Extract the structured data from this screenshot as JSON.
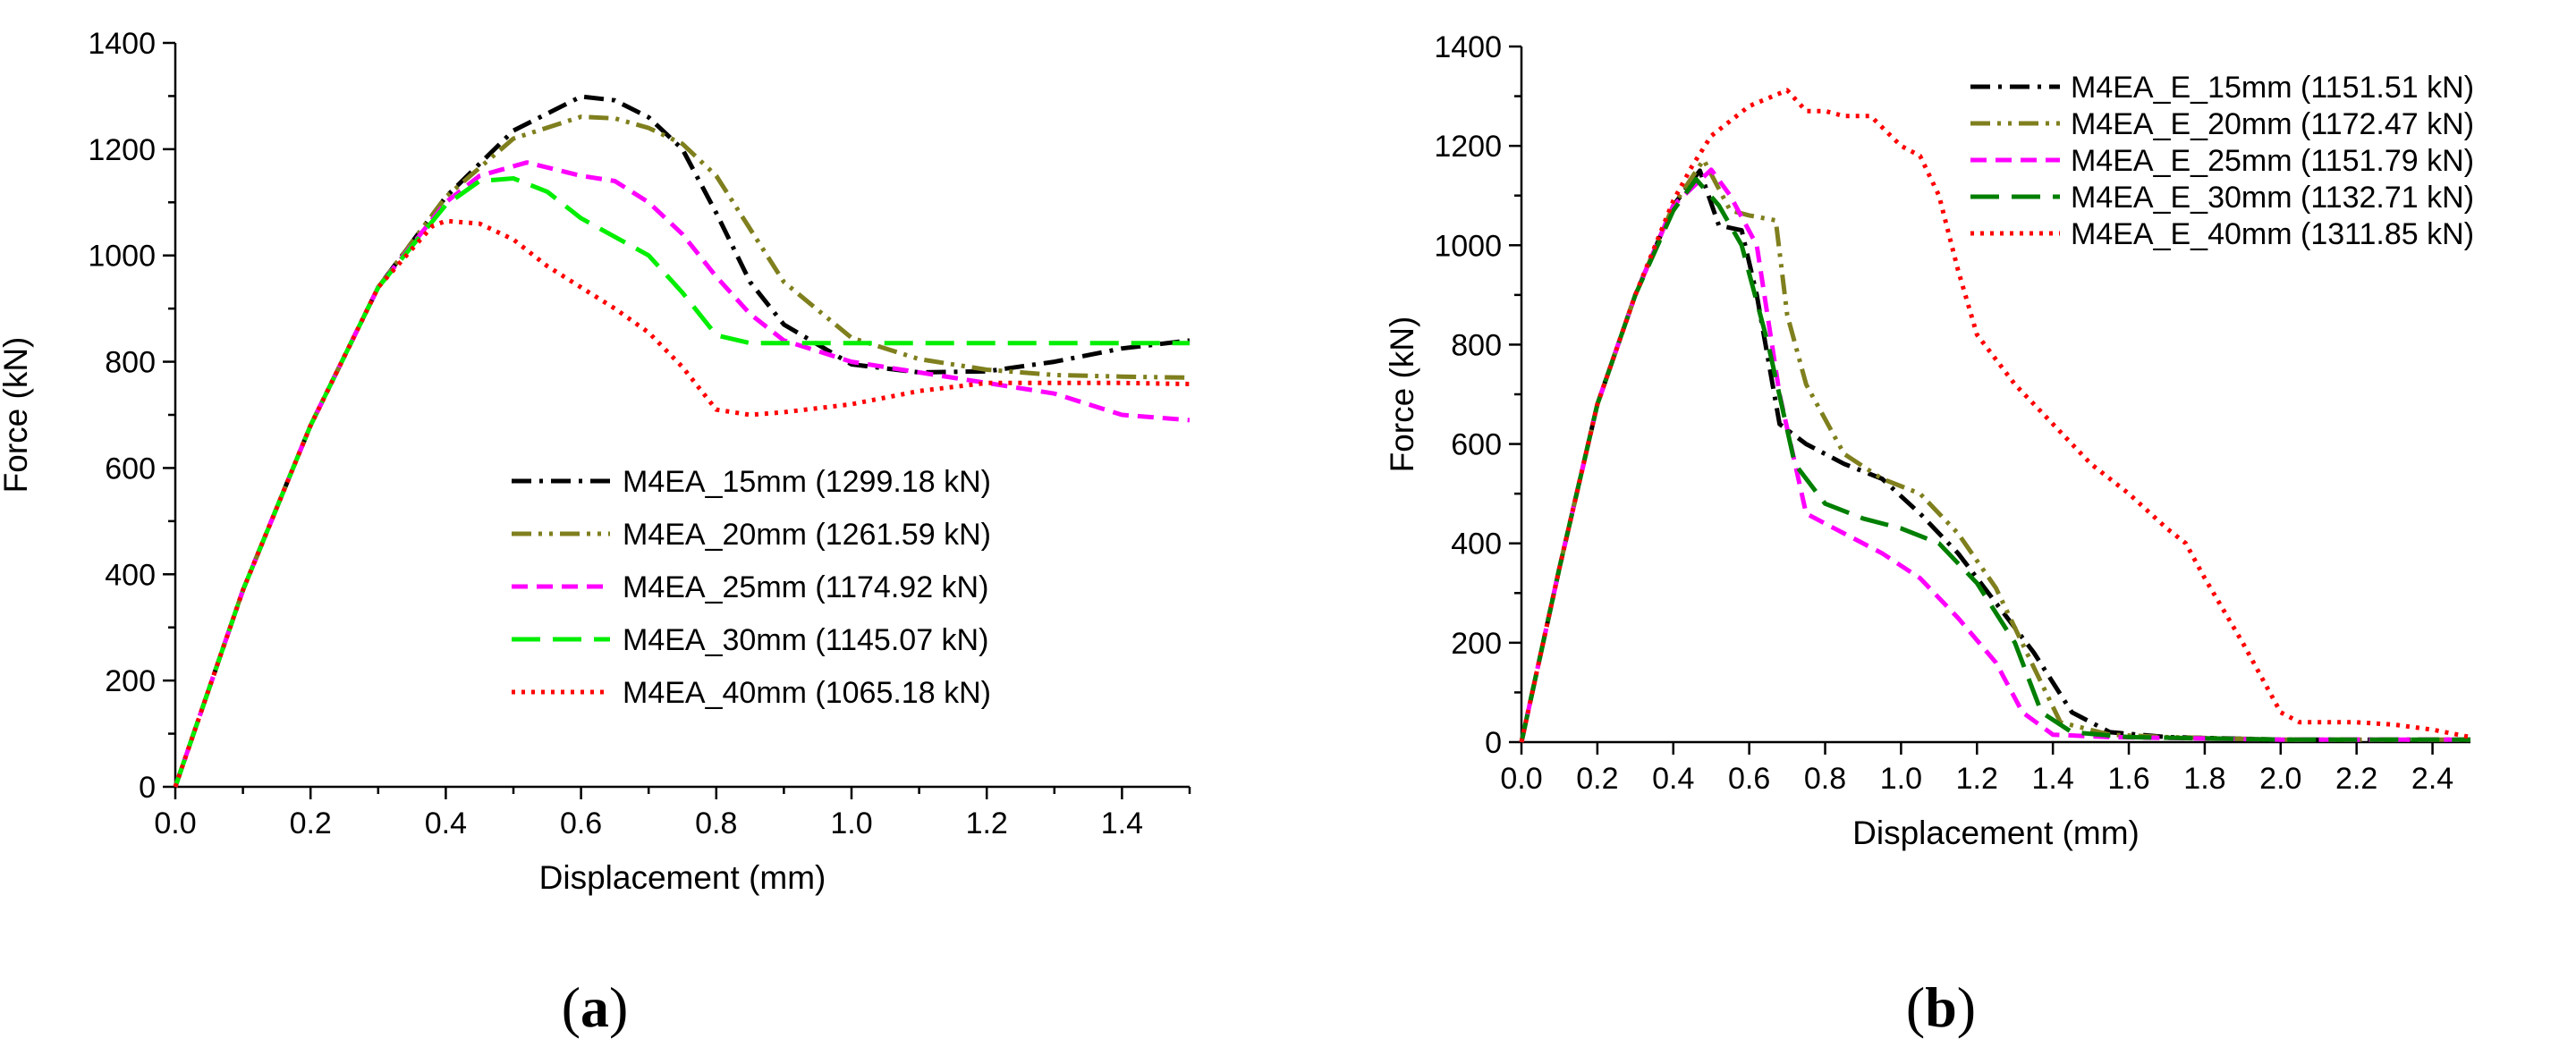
{
  "chart_data": [
    {
      "type": "line",
      "panel_label": {
        "open": "(",
        "letter": "a",
        "close": ")"
      },
      "xlabel": "Displacement (mm)",
      "ylabel": "Force (kN)",
      "xlim": [
        0,
        1.5
      ],
      "ylim": [
        0,
        1400
      ],
      "xticks": [
        0.0,
        0.2,
        0.4,
        0.6,
        0.8,
        1.0,
        1.2,
        1.4
      ],
      "xtick_labels": [
        "0.0",
        "0.2",
        "0.4",
        "0.6",
        "0.8",
        "1.0",
        "1.2",
        "1.4"
      ],
      "yticks": [
        0,
        200,
        400,
        600,
        800,
        1000,
        1200,
        1400
      ],
      "ytick_labels": [
        "0",
        "200",
        "400",
        "600",
        "800",
        "1000",
        "1200",
        "1400"
      ],
      "legend_position": "lower-right",
      "series": [
        {
          "name": "M4EA_15mm (1299.18 kN)",
          "color": "#000000",
          "dash": "dashdot",
          "points": [
            [
              0,
              0
            ],
            [
              0.1,
              370
            ],
            [
              0.2,
              680
            ],
            [
              0.3,
              940
            ],
            [
              0.4,
              1110
            ],
            [
              0.5,
              1235
            ],
            [
              0.6,
              1299
            ],
            [
              0.65,
              1292
            ],
            [
              0.7,
              1260
            ],
            [
              0.75,
              1200
            ],
            [
              0.8,
              1080
            ],
            [
              0.85,
              950
            ],
            [
              0.9,
              870
            ],
            [
              1.0,
              795
            ],
            [
              1.1,
              780
            ],
            [
              1.2,
              782
            ],
            [
              1.3,
              800
            ],
            [
              1.4,
              825
            ],
            [
              1.5,
              840
            ]
          ]
        },
        {
          "name": "M4EA_20mm (1261.59 kN)",
          "color": "#7F7F1E",
          "dash": "dashdotdot",
          "points": [
            [
              0,
              0
            ],
            [
              0.1,
              370
            ],
            [
              0.2,
              680
            ],
            [
              0.3,
              940
            ],
            [
              0.4,
              1110
            ],
            [
              0.5,
              1220
            ],
            [
              0.6,
              1261
            ],
            [
              0.65,
              1258
            ],
            [
              0.7,
              1240
            ],
            [
              0.75,
              1210
            ],
            [
              0.8,
              1150
            ],
            [
              0.85,
              1050
            ],
            [
              0.9,
              950
            ],
            [
              1.0,
              845
            ],
            [
              1.1,
              805
            ],
            [
              1.2,
              785
            ],
            [
              1.3,
              775
            ],
            [
              1.4,
              772
            ],
            [
              1.5,
              770
            ]
          ]
        },
        {
          "name": "M4EA_25mm (1174.92 kN)",
          "color": "#FF00FF",
          "dash": "dash",
          "points": [
            [
              0,
              0
            ],
            [
              0.1,
              370
            ],
            [
              0.2,
              680
            ],
            [
              0.3,
              940
            ],
            [
              0.4,
              1100
            ],
            [
              0.45,
              1150
            ],
            [
              0.52,
              1175
            ],
            [
              0.6,
              1150
            ],
            [
              0.65,
              1140
            ],
            [
              0.7,
              1100
            ],
            [
              0.75,
              1040
            ],
            [
              0.8,
              960
            ],
            [
              0.85,
              890
            ],
            [
              0.9,
              840
            ],
            [
              1.0,
              800
            ],
            [
              1.1,
              780
            ],
            [
              1.2,
              760
            ],
            [
              1.3,
              740
            ],
            [
              1.4,
              700
            ],
            [
              1.5,
              690
            ]
          ]
        },
        {
          "name": "M4EA_30mm (1145.07 kN)",
          "color": "#00EE00",
          "dash": "longdash",
          "points": [
            [
              0,
              0
            ],
            [
              0.1,
              370
            ],
            [
              0.2,
              680
            ],
            [
              0.3,
              940
            ],
            [
              0.4,
              1095
            ],
            [
              0.45,
              1140
            ],
            [
              0.5,
              1145
            ],
            [
              0.55,
              1120
            ],
            [
              0.6,
              1070
            ],
            [
              0.7,
              1000
            ],
            [
              0.75,
              930
            ],
            [
              0.8,
              850
            ],
            [
              0.85,
              835
            ],
            [
              0.9,
              835
            ],
            [
              1.0,
              835
            ],
            [
              1.2,
              835
            ],
            [
              1.4,
              835
            ],
            [
              1.5,
              835
            ]
          ]
        },
        {
          "name": "M4EA_40mm (1065.18 kN)",
          "color": "#FF0000",
          "dash": "dot",
          "points": [
            [
              0,
              0
            ],
            [
              0.1,
              370
            ],
            [
              0.2,
              680
            ],
            [
              0.3,
              940
            ],
            [
              0.38,
              1055
            ],
            [
              0.4,
              1065
            ],
            [
              0.45,
              1060
            ],
            [
              0.5,
              1030
            ],
            [
              0.55,
              980
            ],
            [
              0.6,
              940
            ],
            [
              0.65,
              900
            ],
            [
              0.7,
              855
            ],
            [
              0.75,
              790
            ],
            [
              0.8,
              710
            ],
            [
              0.85,
              700
            ],
            [
              0.9,
              705
            ],
            [
              1.0,
              720
            ],
            [
              1.1,
              745
            ],
            [
              1.2,
              760
            ],
            [
              1.3,
              760
            ],
            [
              1.4,
              760
            ],
            [
              1.5,
              758
            ]
          ]
        }
      ]
    },
    {
      "type": "line",
      "panel_label": {
        "open": "(",
        "letter": "b",
        "close": ")"
      },
      "xlabel": "Displacement (mm)",
      "ylabel": "Force (kN)",
      "xlim": [
        0,
        2.5
      ],
      "ylim": [
        0,
        1400
      ],
      "xticks": [
        0.0,
        0.2,
        0.4,
        0.6,
        0.8,
        1.0,
        1.2,
        1.4,
        1.6,
        1.8,
        2.0,
        2.2,
        2.4
      ],
      "xtick_labels": [
        "0.0",
        "0.2",
        "0.4",
        "0.6",
        "0.8",
        "1.0",
        "1.2",
        "1.4",
        "1.6",
        "1.8",
        "2.0",
        "2.2",
        "2.4"
      ],
      "yticks": [
        0,
        200,
        400,
        600,
        800,
        1000,
        1200,
        1400
      ],
      "ytick_labels": [
        "0",
        "200",
        "400",
        "600",
        "800",
        "1000",
        "1200",
        "1400"
      ],
      "legend_position": "top-right",
      "series": [
        {
          "name": "M4EA_E_15mm (1151.51 kN)",
          "color": "#000000",
          "dash": "dashdot",
          "points": [
            [
              0,
              0
            ],
            [
              0.1,
              350
            ],
            [
              0.2,
              680
            ],
            [
              0.3,
              900
            ],
            [
              0.4,
              1080
            ],
            [
              0.47,
              1150
            ],
            [
              0.52,
              1040
            ],
            [
              0.58,
              1030
            ],
            [
              0.62,
              900
            ],
            [
              0.68,
              640
            ],
            [
              0.75,
              600
            ],
            [
              0.85,
              560
            ],
            [
              0.95,
              530
            ],
            [
              1.05,
              460
            ],
            [
              1.15,
              380
            ],
            [
              1.25,
              280
            ],
            [
              1.35,
              180
            ],
            [
              1.45,
              60
            ],
            [
              1.55,
              20
            ],
            [
              1.7,
              10
            ],
            [
              2.0,
              5
            ],
            [
              2.5,
              5
            ]
          ]
        },
        {
          "name": "M4EA_E_20mm (1172.47 kN)",
          "color": "#7F7F1E",
          "dash": "dashdotdot",
          "points": [
            [
              0,
              0
            ],
            [
              0.1,
              350
            ],
            [
              0.2,
              680
            ],
            [
              0.3,
              900
            ],
            [
              0.4,
              1080
            ],
            [
              0.48,
              1172
            ],
            [
              0.55,
              1070
            ],
            [
              0.6,
              1060
            ],
            [
              0.67,
              1050
            ],
            [
              0.7,
              860
            ],
            [
              0.75,
              720
            ],
            [
              0.85,
              580
            ],
            [
              0.95,
              530
            ],
            [
              1.05,
              500
            ],
            [
              1.15,
              420
            ],
            [
              1.25,
              310
            ],
            [
              1.35,
              150
            ],
            [
              1.42,
              40
            ],
            [
              1.55,
              15
            ],
            [
              1.7,
              10
            ],
            [
              2.0,
              5
            ],
            [
              2.5,
              5
            ]
          ]
        },
        {
          "name": "M4EA_E_25mm (1151.79 kN)",
          "color": "#FF00FF",
          "dash": "dash",
          "points": [
            [
              0,
              0
            ],
            [
              0.1,
              350
            ],
            [
              0.2,
              680
            ],
            [
              0.3,
              900
            ],
            [
              0.4,
              1080
            ],
            [
              0.5,
              1152
            ],
            [
              0.55,
              1100
            ],
            [
              0.62,
              1000
            ],
            [
              0.68,
              700
            ],
            [
              0.75,
              460
            ],
            [
              0.85,
              420
            ],
            [
              0.95,
              380
            ],
            [
              1.05,
              330
            ],
            [
              1.15,
              250
            ],
            [
              1.25,
              160
            ],
            [
              1.32,
              60
            ],
            [
              1.4,
              15
            ],
            [
              1.55,
              10
            ],
            [
              2.0,
              5
            ],
            [
              2.5,
              5
            ]
          ]
        },
        {
          "name": "M4EA_E_30mm (1132.71 kN)",
          "color": "#007F00",
          "dash": "longdash",
          "points": [
            [
              0,
              0
            ],
            [
              0.1,
              350
            ],
            [
              0.2,
              680
            ],
            [
              0.3,
              900
            ],
            [
              0.4,
              1070
            ],
            [
              0.46,
              1133
            ],
            [
              0.52,
              1080
            ],
            [
              0.58,
              1000
            ],
            [
              0.65,
              800
            ],
            [
              0.72,
              560
            ],
            [
              0.8,
              480
            ],
            [
              0.9,
              450
            ],
            [
              1.0,
              430
            ],
            [
              1.1,
              400
            ],
            [
              1.2,
              320
            ],
            [
              1.3,
              200
            ],
            [
              1.37,
              60
            ],
            [
              1.45,
              20
            ],
            [
              1.6,
              10
            ],
            [
              2.0,
              5
            ],
            [
              2.5,
              5
            ]
          ]
        },
        {
          "name": "M4EA_E_40mm (1311.85 kN)",
          "color": "#FF0000",
          "dash": "dot",
          "points": [
            [
              0,
              0
            ],
            [
              0.1,
              350
            ],
            [
              0.2,
              680
            ],
            [
              0.3,
              900
            ],
            [
              0.4,
              1090
            ],
            [
              0.45,
              1160
            ],
            [
              0.5,
              1220
            ],
            [
              0.6,
              1280
            ],
            [
              0.7,
              1312
            ],
            [
              0.75,
              1270
            ],
            [
              0.8,
              1270
            ],
            [
              0.85,
              1260
            ],
            [
              0.92,
              1260
            ],
            [
              1.0,
              1200
            ],
            [
              1.05,
              1180
            ],
            [
              1.1,
              1100
            ],
            [
              1.15,
              950
            ],
            [
              1.2,
              820
            ],
            [
              1.3,
              720
            ],
            [
              1.4,
              640
            ],
            [
              1.5,
              560
            ],
            [
              1.6,
              500
            ],
            [
              1.7,
              430
            ],
            [
              1.75,
              400
            ],
            [
              1.8,
              330
            ],
            [
              1.9,
              200
            ],
            [
              1.95,
              130
            ],
            [
              2.0,
              60
            ],
            [
              2.05,
              40
            ],
            [
              2.2,
              40
            ],
            [
              2.3,
              35
            ],
            [
              2.4,
              25
            ],
            [
              2.5,
              10
            ]
          ]
        }
      ]
    }
  ]
}
